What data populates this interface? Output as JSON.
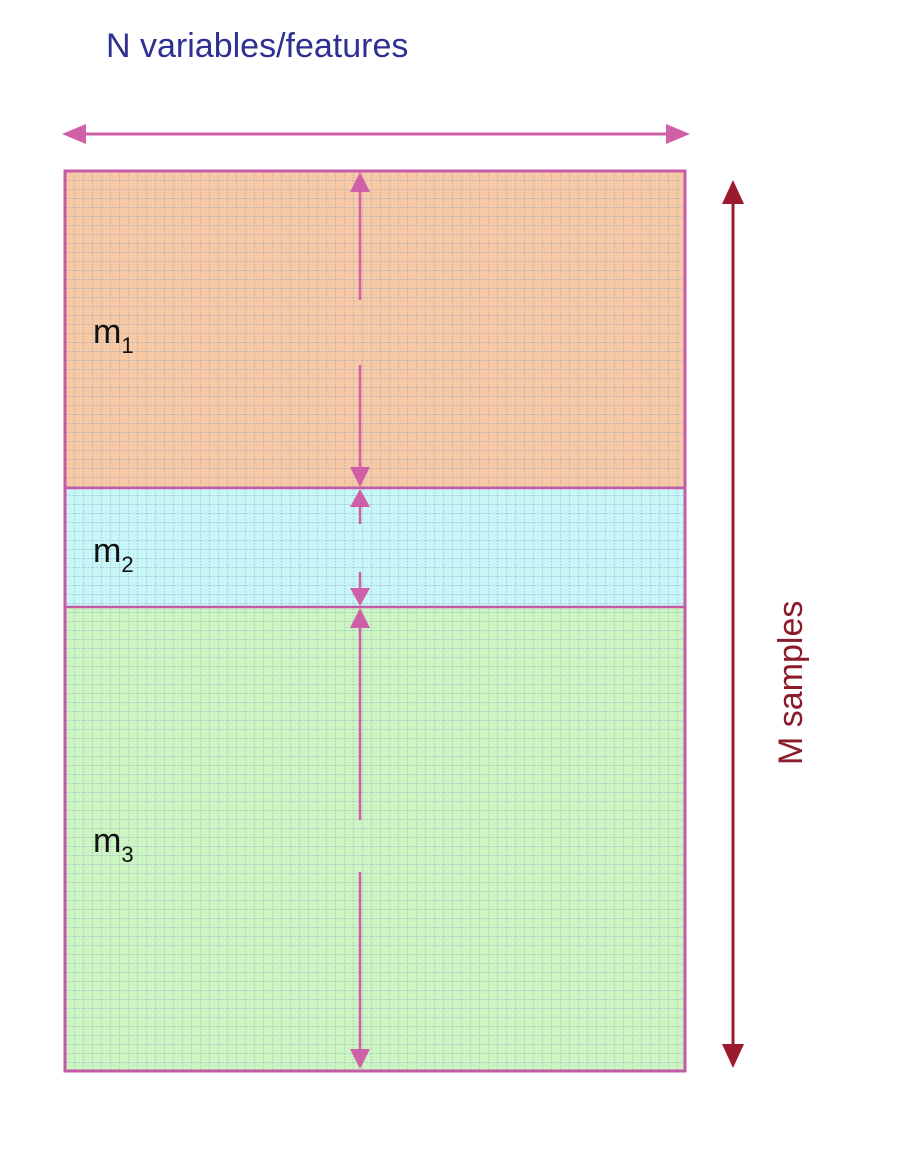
{
  "diagram": {
    "top_label": "N variables/features",
    "side_label": "M samples",
    "blocks": [
      {
        "base": "m",
        "sub": "1",
        "fill": "#f7c9a4"
      },
      {
        "base": "m",
        "sub": "2",
        "fill": "#c9f7f7"
      },
      {
        "base": "m",
        "sub": "3",
        "fill": "#cdf5c2"
      }
    ]
  },
  "colors": {
    "top_label": "#2e3192",
    "side_label": "#8b1a2b",
    "frame": "#c55aa7",
    "arrow_pink": "#cf5fa7",
    "arrow_dark": "#9b1b2e",
    "grid_line": "#7f9ec7"
  }
}
